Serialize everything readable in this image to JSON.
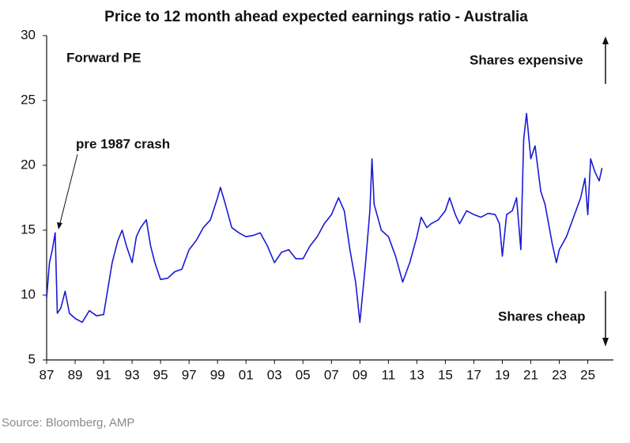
{
  "chart_data": {
    "type": "line",
    "title": "Price to 12 month ahead expected earnings ratio - Australia",
    "annotations": [
      "Forward PE",
      "Shares expensive",
      "Shares cheap",
      "pre 1987 crash"
    ],
    "source": "Source: Bloomberg, AMP",
    "xlim": [
      1987,
      2026.8
    ],
    "xticks": [
      {
        "value": 1987,
        "label": "87"
      },
      {
        "value": 1989,
        "label": "89"
      },
      {
        "value": 1991,
        "label": "91"
      },
      {
        "value": 1993,
        "label": "93"
      },
      {
        "value": 1995,
        "label": "95"
      },
      {
        "value": 1997,
        "label": "97"
      },
      {
        "value": 1999,
        "label": "99"
      },
      {
        "value": 2001,
        "label": "01"
      },
      {
        "value": 2003,
        "label": "03"
      },
      {
        "value": 2005,
        "label": "05"
      },
      {
        "value": 2007,
        "label": "07"
      },
      {
        "value": 2009,
        "label": "09"
      },
      {
        "value": 2011,
        "label": "11"
      },
      {
        "value": 2013,
        "label": "13"
      },
      {
        "value": 2015,
        "label": "15"
      },
      {
        "value": 2017,
        "label": "17"
      },
      {
        "value": 2019,
        "label": "19"
      },
      {
        "value": 2021,
        "label": "21"
      },
      {
        "value": 2023,
        "label": "23"
      },
      {
        "value": 2025,
        "label": "25"
      }
    ],
    "ylim": [
      5,
      30
    ],
    "yticks": [
      5,
      10,
      15,
      20,
      25,
      30
    ],
    "x": [
      1987.0,
      1987.2,
      1987.4,
      1987.6,
      1987.75,
      1988,
      1988.3,
      1988.6,
      1989,
      1989.5,
      1990,
      1990.5,
      1991,
      1991.3,
      1991.6,
      1992,
      1992.3,
      1992.6,
      1993,
      1993.3,
      1993.6,
      1994,
      1994.3,
      1994.6,
      1995,
      1995.5,
      1996,
      1996.5,
      1997,
      1997.5,
      1998,
      1998.5,
      1999,
      1999.2,
      1999.5,
      2000,
      2000.5,
      2001,
      2001.5,
      2002,
      2002.5,
      2003,
      2003.5,
      2004,
      2004.5,
      2005,
      2005.5,
      2006,
      2006.5,
      2007,
      2007.5,
      2007.9,
      2008.3,
      2008.7,
      2009,
      2009.4,
      2009.7,
      2009.85,
      2010,
      2010.5,
      2011,
      2011.5,
      2012,
      2012.5,
      2013,
      2013.3,
      2013.7,
      2014,
      2014.5,
      2015,
      2015.3,
      2015.7,
      2016,
      2016.5,
      2017,
      2017.5,
      2018,
      2018.5,
      2018.8,
      2019,
      2019.3,
      2019.7,
      2020,
      2020.3,
      2020.5,
      2020.7,
      2021,
      2021.3,
      2021.7,
      2022,
      2022.5,
      2022.8,
      2023,
      2023.5,
      2024,
      2024.5,
      2024.8,
      2025,
      2025.2,
      2025.5,
      2025.8,
      2026
    ],
    "series": [
      {
        "name": "Forward PE",
        "color": "#1a1ad6",
        "values": [
          9.8,
          12.5,
          13.5,
          14.8,
          8.6,
          9,
          10.3,
          8.6,
          8.2,
          7.9,
          8.8,
          8.4,
          8.5,
          10.5,
          12.5,
          14.2,
          15,
          13.8,
          12.5,
          14.5,
          15.2,
          15.8,
          13.8,
          12.5,
          11.2,
          11.3,
          11.8,
          12,
          13.5,
          14.2,
          15.2,
          15.8,
          17.5,
          18.3,
          17.2,
          15.2,
          14.8,
          14.5,
          14.6,
          14.8,
          13.8,
          12.5,
          13.3,
          13.5,
          12.8,
          12.8,
          13.8,
          14.5,
          15.5,
          16.2,
          17.5,
          16.5,
          13.5,
          11,
          7.9,
          12.5,
          16.5,
          20.5,
          17,
          15,
          14.5,
          13,
          11,
          12.5,
          14.5,
          16,
          15.2,
          15.5,
          15.8,
          16.5,
          17.5,
          16.2,
          15.5,
          16.5,
          16.2,
          16,
          16.3,
          16.2,
          15.5,
          13,
          16.2,
          16.5,
          17.5,
          13.5,
          22,
          24,
          20.5,
          21.5,
          18,
          17,
          14,
          12.5,
          13.5,
          14.5,
          16,
          17.5,
          19,
          16.2,
          20.5,
          19.5,
          18.8,
          19.8
        ]
      }
    ]
  }
}
